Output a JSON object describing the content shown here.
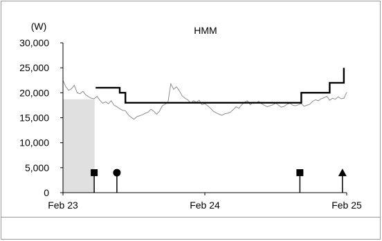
{
  "chart_data": {
    "type": "line",
    "title": "HMM",
    "unit_label": "(W)",
    "xlabel": "",
    "ylabel": "",
    "ylim": [
      0,
      30000
    ],
    "y_ticks": [
      {
        "value": 0,
        "label": "0"
      },
      {
        "value": 5000,
        "label": "5,000"
      },
      {
        "value": 10000,
        "label": "10,000"
      },
      {
        "value": 15000,
        "label": "15,000"
      },
      {
        "value": 20000,
        "label": "20,000"
      },
      {
        "value": 25000,
        "label": "25,000"
      },
      {
        "value": 30000,
        "label": "30,000"
      }
    ],
    "xlim": [
      0,
      2
    ],
    "x_ticks": [
      {
        "value": 0,
        "label": "Feb 23"
      },
      {
        "value": 1,
        "label": "Feb 24"
      },
      {
        "value": 2,
        "label": "Feb 25"
      }
    ],
    "grid": false,
    "series": [
      {
        "kind": "price",
        "color": "#8c8c8c",
        "x": [
          0.0,
          0.02,
          0.04,
          0.06,
          0.08,
          0.1,
          0.12,
          0.14,
          0.16,
          0.18,
          0.2,
          0.22,
          0.24,
          0.26,
          0.28,
          0.3,
          0.32,
          0.34,
          0.36,
          0.38,
          0.4,
          0.42,
          0.44,
          0.46,
          0.48,
          0.5,
          0.52,
          0.54,
          0.56,
          0.58,
          0.6,
          0.62,
          0.64,
          0.66,
          0.68,
          0.7,
          0.72,
          0.74,
          0.76,
          0.78,
          0.8,
          0.82,
          0.84,
          0.86,
          0.88,
          0.9,
          0.92,
          0.94,
          0.96,
          0.98,
          1.0,
          1.02,
          1.04,
          1.06,
          1.08,
          1.1,
          1.12,
          1.14,
          1.16,
          1.18,
          1.2,
          1.22,
          1.24,
          1.26,
          1.28,
          1.3,
          1.32,
          1.34,
          1.36,
          1.38,
          1.4,
          1.42,
          1.44,
          1.46,
          1.48,
          1.5,
          1.52,
          1.54,
          1.56,
          1.58,
          1.6,
          1.62,
          1.64,
          1.66,
          1.68,
          1.7,
          1.72,
          1.74,
          1.76,
          1.78,
          1.8,
          1.82,
          1.84,
          1.86,
          1.88,
          1.9,
          1.92,
          1.94,
          1.96,
          1.98,
          2.0
        ],
        "values": [
          22500,
          21200,
          20500,
          20800,
          21500,
          20000,
          19800,
          20300,
          19600,
          19200,
          18900,
          18800,
          19300,
          18500,
          17900,
          18200,
          17800,
          18400,
          17500,
          17200,
          16800,
          16500,
          16400,
          15600,
          15100,
          14700,
          15200,
          15400,
          15600,
          15900,
          16100,
          16700,
          16300,
          15700,
          16300,
          17400,
          17700,
          18100,
          21800,
          20700,
          21200,
          20400,
          19400,
          18900,
          18600,
          17900,
          18400,
          18100,
          18500,
          17600,
          17800,
          17400,
          16900,
          16300,
          16000,
          15700,
          15500,
          15800,
          15900,
          16100,
          16600,
          17200,
          16900,
          17600,
          18100,
          18400,
          17600,
          18100,
          17900,
          18300,
          17800,
          17500,
          17200,
          17400,
          17600,
          17900,
          17500,
          17100,
          17300,
          17700,
          17900,
          17500,
          17400,
          17600,
          17800,
          17300,
          17500,
          17700,
          18300,
          18600,
          18400,
          18800,
          19000,
          19300,
          18500,
          18900,
          18700,
          19200,
          18800,
          18900,
          20100
        ]
      },
      {
        "kind": "target-price",
        "color": "#000000",
        "x": [
          0.23,
          0.4,
          0.4,
          0.44,
          0.44,
          1.68,
          1.68,
          1.88,
          1.88,
          1.98,
          1.98
        ],
        "values": [
          21000,
          21000,
          20000,
          20000,
          18000,
          18000,
          20000,
          20000,
          22000,
          22000,
          25000
        ]
      }
    ],
    "shaded_band": {
      "x_start": 0.0,
      "x_end": 0.22,
      "y_max": 18700,
      "color": "#c8c8c8"
    },
    "markers": [
      {
        "x": 0.22,
        "value": 4000,
        "shape": "square"
      },
      {
        "x": 0.38,
        "value": 4000,
        "shape": "circle"
      },
      {
        "x": 1.67,
        "value": 4000,
        "shape": "square"
      },
      {
        "x": 1.97,
        "value": 4000,
        "shape": "triangle"
      }
    ],
    "colors": {
      "axis": "#000000",
      "tick_label": "#000000",
      "border": "#9a9a9a"
    }
  }
}
